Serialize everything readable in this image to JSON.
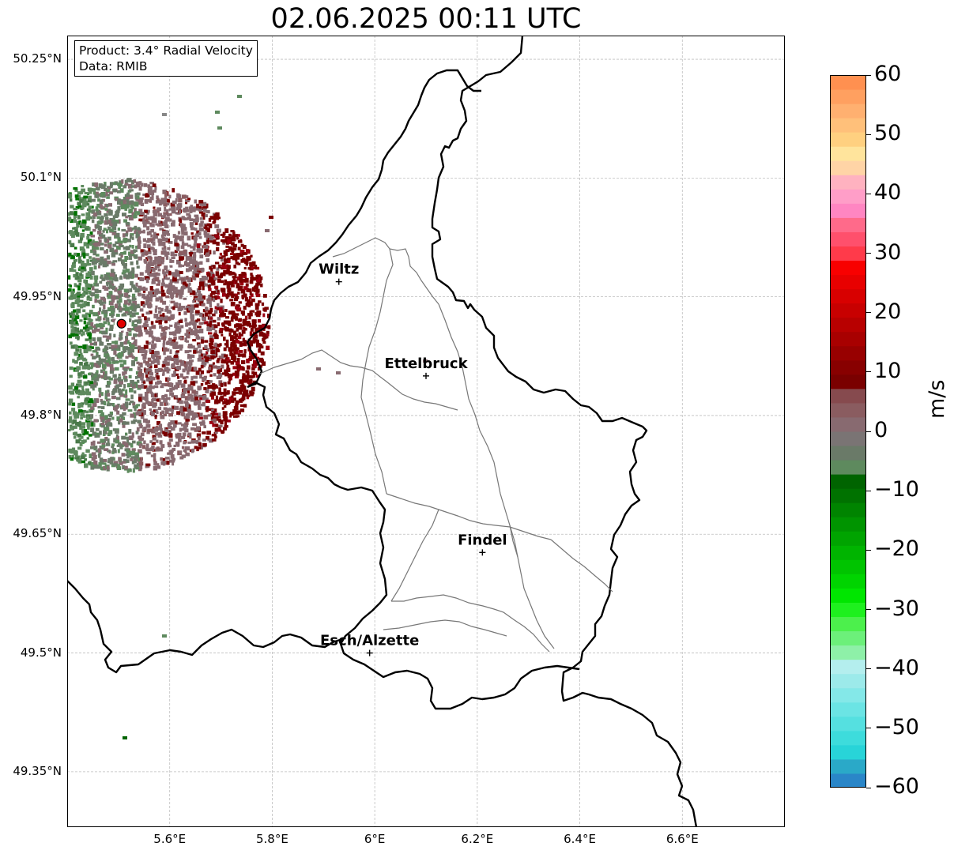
{
  "title": "02.06.2025 00:11 UTC",
  "info": {
    "product": "Product: 3.4° Radial Velocity",
    "data": "Data: RMIB"
  },
  "axes": {
    "lon_range": [
      5.4,
      6.8
    ],
    "lat_range": [
      49.28,
      50.28
    ],
    "lon_ticks": [
      {
        "v": 5.6,
        "label": "5.6°E"
      },
      {
        "v": 5.8,
        "label": "5.8°E"
      },
      {
        "v": 6.0,
        "label": "6°E"
      },
      {
        "v": 6.2,
        "label": "6.2°E"
      },
      {
        "v": 6.4,
        "label": "6.4°E"
      },
      {
        "v": 6.6,
        "label": "6.6°E"
      }
    ],
    "lat_ticks": [
      {
        "v": 50.25,
        "label": "50.25°N"
      },
      {
        "v": 50.1,
        "label": "50.1°N"
      },
      {
        "v": 49.95,
        "label": "49.95°N"
      },
      {
        "v": 49.8,
        "label": "49.8°N"
      },
      {
        "v": 49.65,
        "label": "49.65°N"
      },
      {
        "v": 49.5,
        "label": "49.5°N"
      },
      {
        "v": 49.35,
        "label": "49.35°N"
      }
    ],
    "grid": true
  },
  "cities": [
    {
      "name": "Wiltz",
      "lon": 5.93,
      "lat": 49.969
    },
    {
      "name": "Ettelbruck",
      "lon": 6.1,
      "lat": 49.85
    },
    {
      "name": "Findel",
      "lon": 6.21,
      "lat": 49.627
    },
    {
      "name": "Esch/Alzette",
      "lon": 5.99,
      "lat": 49.5
    }
  ],
  "radar_site": {
    "lon": 5.506,
    "lat": 49.916
  },
  "colorbar": {
    "label": "m/s",
    "min": -60,
    "max": 60,
    "ticks": [
      "60",
      "50",
      "40",
      "30",
      "20",
      "10",
      "0",
      "−10",
      "−20",
      "−30",
      "−40",
      "−50",
      "−60"
    ],
    "colors": [
      "#2a86c8",
      "#2aa9c8",
      "#28d4d8",
      "#3ddcdc",
      "#55e0e0",
      "#6be4e4",
      "#84e8e8",
      "#9ceaea",
      "#b4eeee",
      "#8ef0a8",
      "#6cf07a",
      "#4cf04c",
      "#1ef01e",
      "#00e600",
      "#00d400",
      "#00c400",
      "#00b400",
      "#00a400",
      "#009400",
      "#008400",
      "#007200",
      "#006400",
      "#5e8a5e",
      "#6a7a68",
      "#7a7474",
      "#886a70",
      "#8a5c60",
      "#864a4e",
      "#7a0000",
      "#880000",
      "#980000",
      "#a80000",
      "#b80000",
      "#c80000",
      "#d80000",
      "#e80000",
      "#f80000",
      "#ff3a4a",
      "#ff506c",
      "#ff6a8a",
      "#ff86c2",
      "#ff9ec8",
      "#ffb2c0",
      "#ffd4a6",
      "#ffe49c",
      "#ffd080",
      "#ffc07a",
      "#ffb070",
      "#ffa060",
      "#ff9050"
    ]
  }
}
